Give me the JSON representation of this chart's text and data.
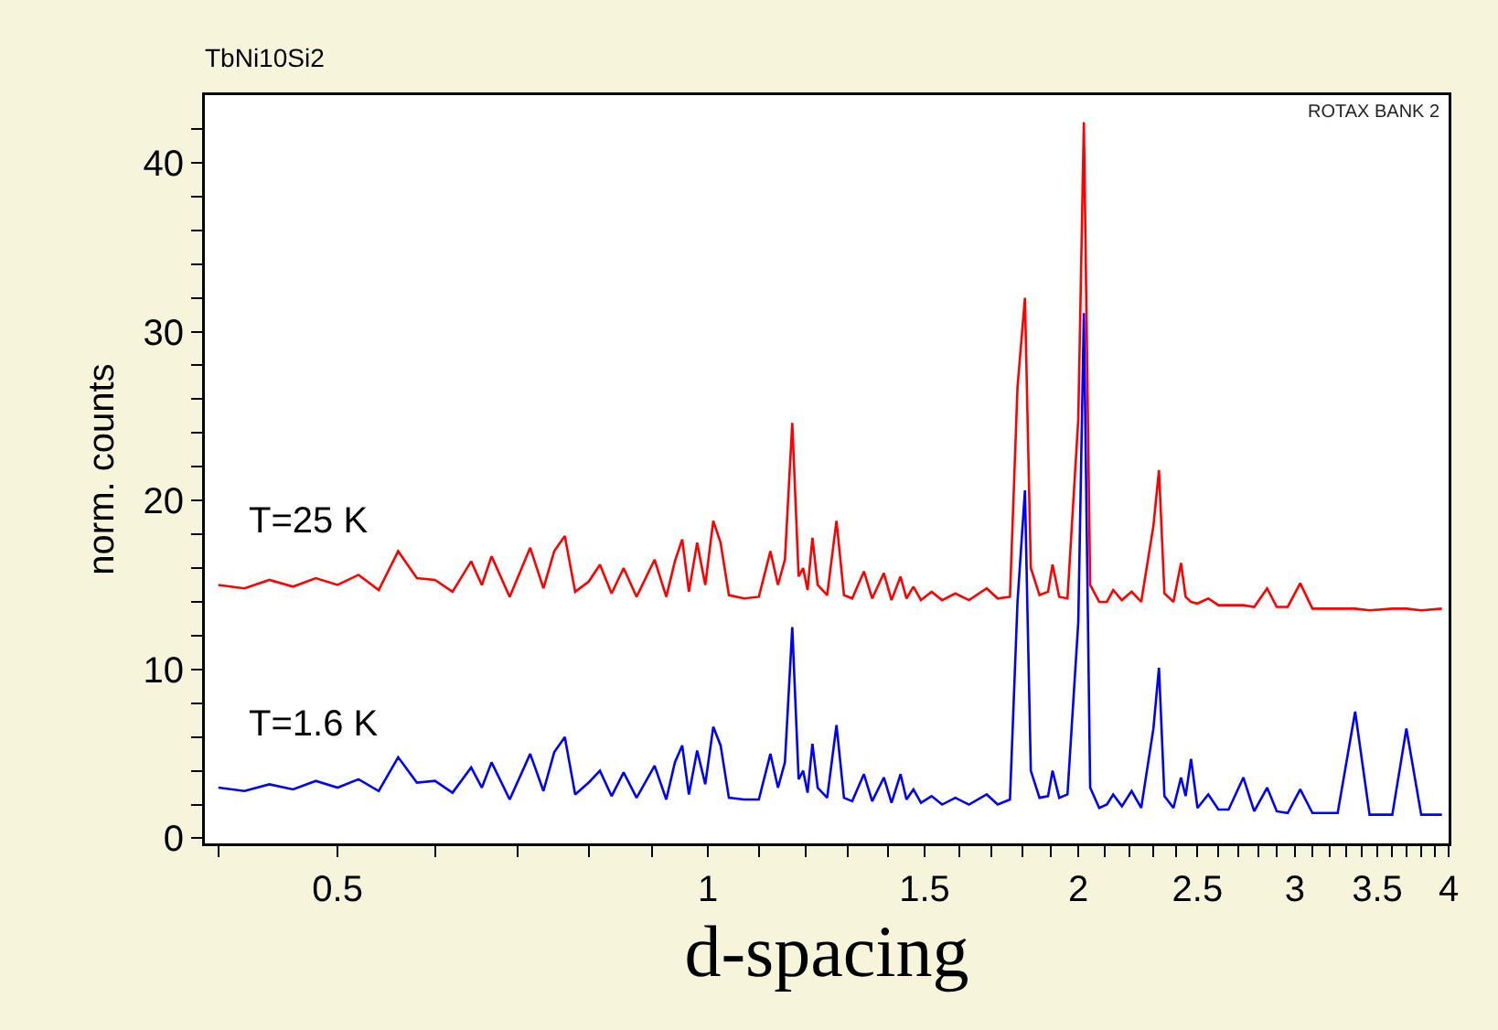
{
  "chart_data": {
    "type": "line",
    "title": "TbNi10Si2",
    "xlabel": "d-spacing",
    "ylabel": "norm. counts",
    "log": "x",
    "grid": false,
    "legend": false,
    "marker": "none",
    "line_style": "solid",
    "annotations": [
      "ROTAX BANK 2"
    ],
    "xlim": [
      0.39,
      4.0
    ],
    "ylim": [
      -0.3,
      44
    ],
    "xticks": [
      {
        "value": 0.4,
        "label": null
      },
      0.5,
      {
        "value": 0.6,
        "label": null
      },
      {
        "value": 0.7,
        "label": null
      },
      {
        "value": 0.8,
        "label": null
      },
      {
        "value": 0.9,
        "label": null
      },
      1,
      {
        "value": 1.1,
        "label": null
      },
      {
        "value": 1.2,
        "label": null
      },
      {
        "value": 1.3,
        "label": null
      },
      {
        "value": 1.4,
        "label": null
      },
      1.5,
      {
        "value": 1.6,
        "label": null
      },
      {
        "value": 1.7,
        "label": null
      },
      {
        "value": 1.8,
        "label": null
      },
      {
        "value": 1.9,
        "label": null
      },
      2,
      {
        "value": 2.1,
        "label": null
      },
      {
        "value": 2.2,
        "label": null
      },
      {
        "value": 2.3,
        "label": null
      },
      {
        "value": 2.4,
        "label": null
      },
      2.5,
      {
        "value": 2.6,
        "label": null
      },
      {
        "value": 2.7,
        "label": null
      },
      {
        "value": 2.8,
        "label": null
      },
      {
        "value": 2.9,
        "label": null
      },
      3,
      {
        "value": 3.1,
        "label": null
      },
      {
        "value": 3.2,
        "label": null
      },
      {
        "value": 3.3,
        "label": null
      },
      {
        "value": 3.4,
        "label": null
      },
      3.5,
      {
        "value": 3.6,
        "label": null
      },
      {
        "value": 3.7,
        "label": null
      },
      {
        "value": 3.8,
        "label": null
      },
      {
        "value": 3.9,
        "label": null
      },
      4
    ],
    "yticks": [
      0,
      {
        "value": 2,
        "label": null
      },
      {
        "value": 4,
        "label": null
      },
      {
        "value": 6,
        "label": null
      },
      {
        "value": 8,
        "label": null
      },
      10,
      {
        "value": 12,
        "label": null
      },
      {
        "value": 14,
        "label": null
      },
      {
        "value": 16,
        "label": null
      },
      {
        "value": 18,
        "label": null
      },
      20,
      {
        "value": 22,
        "label": null
      },
      {
        "value": 24,
        "label": null
      },
      {
        "value": 26,
        "label": null
      },
      {
        "value": 28,
        "label": null
      },
      30,
      {
        "value": 32,
        "label": null
      },
      {
        "value": 34,
        "label": null
      },
      {
        "value": 36,
        "label": null
      },
      {
        "value": 38,
        "label": null
      },
      40,
      {
        "value": 42,
        "label": null
      }
    ],
    "x": [
      0.4,
      0.42,
      0.44,
      0.46,
      0.48,
      0.5,
      0.52,
      0.54,
      0.56,
      0.58,
      0.6,
      0.62,
      0.642,
      0.655,
      0.667,
      0.69,
      0.717,
      0.735,
      0.75,
      0.765,
      0.78,
      0.8,
      0.817,
      0.835,
      0.854,
      0.875,
      0.905,
      0.925,
      0.94,
      0.953,
      0.965,
      0.98,
      0.995,
      1.01,
      1.024,
      1.04,
      1.07,
      1.1,
      1.124,
      1.14,
      1.155,
      1.171,
      1.185,
      1.195,
      1.205,
      1.216,
      1.228,
      1.25,
      1.272,
      1.29,
      1.31,
      1.339,
      1.36,
      1.39,
      1.41,
      1.434,
      1.45,
      1.469,
      1.49,
      1.52,
      1.55,
      1.589,
      1.63,
      1.685,
      1.72,
      1.76,
      1.785,
      1.81,
      1.83,
      1.86,
      1.89,
      1.906,
      1.93,
      1.96,
      2.0,
      2.021,
      2.045,
      2.08,
      2.11,
      2.135,
      2.17,
      2.21,
      2.25,
      2.302,
      2.326,
      2.35,
      2.39,
      2.424,
      2.445,
      2.47,
      2.5,
      2.551,
      2.6,
      2.65,
      2.724,
      2.78,
      2.848,
      2.9,
      2.96,
      3.03,
      3.1,
      3.25,
      3.358,
      3.45,
      3.6,
      3.696,
      3.8,
      3.95
    ],
    "series": [
      {
        "name": "T=25 K",
        "color": "#ff0000",
        "values": [
          15.0,
          14.8,
          15.3,
          14.9,
          15.4,
          15.0,
          15.6,
          14.7,
          17.0,
          15.4,
          15.3,
          14.6,
          16.4,
          15.0,
          16.7,
          14.3,
          17.2,
          14.8,
          17.0,
          17.9,
          14.6,
          15.2,
          16.2,
          14.5,
          16.0,
          14.3,
          16.5,
          14.3,
          16.4,
          17.7,
          14.6,
          17.5,
          15.0,
          18.8,
          17.5,
          14.4,
          14.2,
          14.3,
          17.0,
          15.0,
          16.5,
          24.6,
          15.5,
          16.0,
          14.7,
          17.8,
          15.0,
          14.4,
          18.8,
          14.4,
          14.2,
          15.8,
          14.2,
          15.7,
          14.1,
          15.5,
          14.2,
          14.9,
          14.1,
          14.6,
          14.1,
          14.5,
          14.1,
          14.8,
          14.2,
          14.3,
          26.7,
          32.0,
          16.0,
          14.4,
          14.6,
          16.2,
          14.3,
          14.2,
          24.8,
          42.4,
          15.0,
          14.0,
          14.0,
          14.7,
          14.1,
          14.6,
          14.0,
          18.5,
          21.8,
          14.5,
          14.0,
          16.3,
          14.3,
          14.0,
          13.9,
          14.2,
          13.8,
          13.8,
          13.8,
          13.7,
          14.8,
          13.7,
          13.7,
          15.1,
          13.6,
          13.6,
          13.6,
          13.5,
          13.6,
          13.6,
          13.5,
          13.6
        ]
      },
      {
        "name": "T=1.6 K",
        "color": "#0000ff",
        "values": [
          3.0,
          2.8,
          3.2,
          2.9,
          3.4,
          3.0,
          3.5,
          2.8,
          4.8,
          3.3,
          3.4,
          2.7,
          4.2,
          3.0,
          4.5,
          2.3,
          5.0,
          2.8,
          5.1,
          6.0,
          2.6,
          3.3,
          4.0,
          2.5,
          3.9,
          2.4,
          4.3,
          2.3,
          4.5,
          5.5,
          2.6,
          5.2,
          3.2,
          6.6,
          5.5,
          2.4,
          2.3,
          2.3,
          5.0,
          3.0,
          4.5,
          12.5,
          3.5,
          4.0,
          2.7,
          5.6,
          3.0,
          2.4,
          6.7,
          2.4,
          2.2,
          3.8,
          2.2,
          3.6,
          2.1,
          3.8,
          2.3,
          2.9,
          2.1,
          2.5,
          2.0,
          2.4,
          2.0,
          2.6,
          2.0,
          2.3,
          14.0,
          20.6,
          4.0,
          2.4,
          2.5,
          4.0,
          2.4,
          2.6,
          12.8,
          31.1,
          3.0,
          1.8,
          2.0,
          2.6,
          1.9,
          2.8,
          1.8,
          6.5,
          10.1,
          2.5,
          1.8,
          3.6,
          2.5,
          4.7,
          1.8,
          2.6,
          1.7,
          1.7,
          3.6,
          1.6,
          3.0,
          1.6,
          1.5,
          2.9,
          1.5,
          1.5,
          7.5,
          1.4,
          1.4,
          6.5,
          1.4,
          1.4
        ]
      }
    ]
  }
}
